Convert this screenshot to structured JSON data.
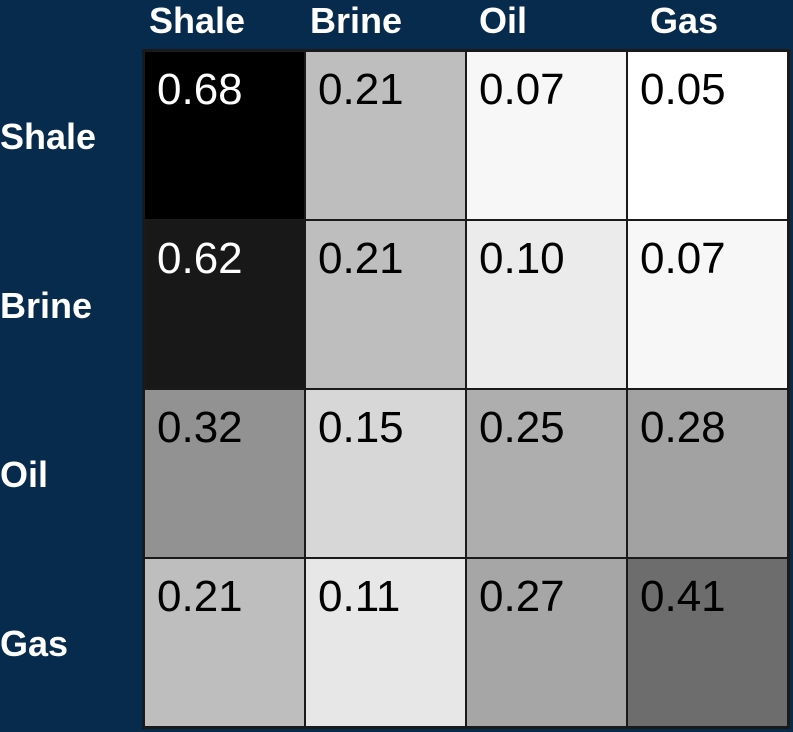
{
  "chart_data": {
    "type": "heatmap",
    "x_categories": [
      "Shale",
      "Brine",
      "Oil",
      "Gas"
    ],
    "y_categories": [
      "Shale",
      "Brine",
      "Oil",
      "Gas"
    ],
    "values": [
      [
        0.68,
        0.21,
        0.07,
        0.05
      ],
      [
        0.62,
        0.21,
        0.1,
        0.07
      ],
      [
        0.32,
        0.15,
        0.25,
        0.28
      ],
      [
        0.21,
        0.11,
        0.27,
        0.41
      ]
    ],
    "value_labels": [
      [
        "0.68",
        "0.21",
        "0.07",
        "0.05"
      ],
      [
        "0.62",
        "0.21",
        "0.10",
        "0.07"
      ],
      [
        "0.32",
        "0.15",
        "0.25",
        "0.28"
      ],
      [
        "0.21",
        "0.11",
        "0.27",
        "0.41"
      ]
    ]
  }
}
